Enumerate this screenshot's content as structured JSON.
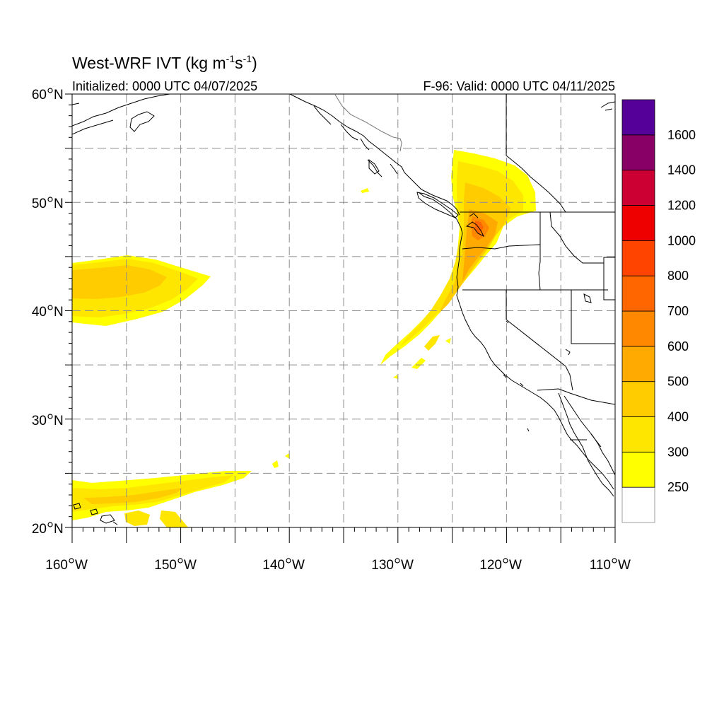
{
  "title": {
    "main": "West-WRF IVT (kg m",
    "unit_m_exp": "-1",
    "unit_s": "s",
    "unit_s_exp": "-1",
    "close": ")"
  },
  "subtitle_left": "Initialized: 0000 UTC 04/07/2025",
  "subtitle_right": "F-96: Valid: 0000 UTC 04/11/2025",
  "lat_labels": [
    {
      "deg": "60",
      "hem": "N"
    },
    {
      "deg": "50",
      "hem": "N"
    },
    {
      "deg": "40",
      "hem": "N"
    },
    {
      "deg": "30",
      "hem": "N"
    },
    {
      "deg": "20",
      "hem": "N"
    }
  ],
  "lon_labels": [
    {
      "deg": "160",
      "hem": "W"
    },
    {
      "deg": "150",
      "hem": "W"
    },
    {
      "deg": "140",
      "hem": "W"
    },
    {
      "deg": "130",
      "hem": "W"
    },
    {
      "deg": "120",
      "hem": "W"
    },
    {
      "deg": "110",
      "hem": "W"
    }
  ],
  "colorbar": {
    "colors": [
      "#ffffff",
      "#ffff00",
      "#ffe600",
      "#ffcc00",
      "#ffaa00",
      "#ff8800",
      "#ff6600",
      "#ff4400",
      "#ee0000",
      "#cc0033",
      "#880066",
      "#550099"
    ],
    "labels": [
      "250",
      "300",
      "400",
      "500",
      "600",
      "700",
      "800",
      "1000",
      "1200",
      "1400",
      "1600"
    ]
  },
  "map": {
    "extent": {
      "lon_min": -160,
      "lon_max": -110,
      "lat_min": 20,
      "lat_max": 60
    },
    "grid_lon_step": 5,
    "grid_lat_step": 5,
    "ivt_colors": {
      "c250": "#ffff00",
      "c300": "#ffe600",
      "c400": "#ffcc00",
      "c500": "#ffaa00",
      "c600": "#ff8800",
      "c700": "#ff6600"
    }
  }
}
